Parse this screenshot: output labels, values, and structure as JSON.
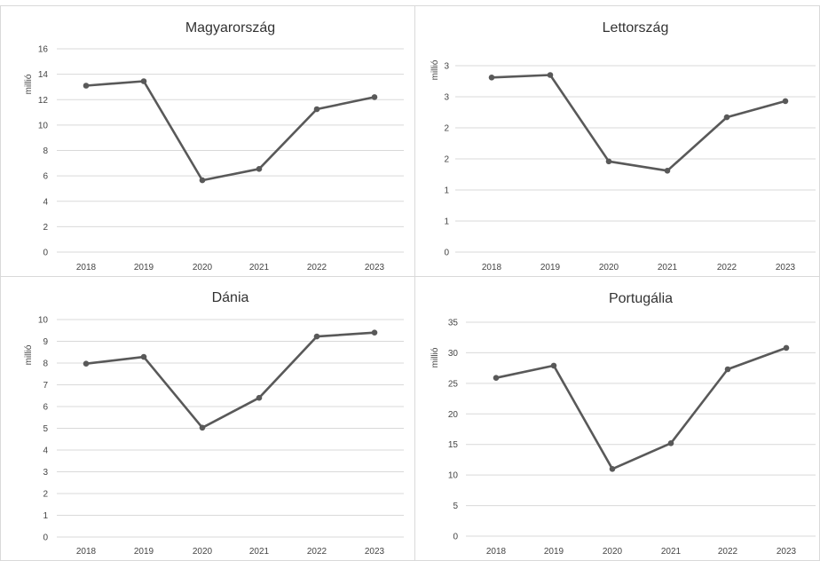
{
  "chart_data": [
    {
      "type": "line",
      "title": "Magyarország",
      "ylabel": "millió",
      "xlabel": "",
      "categories": [
        "2018",
        "2019",
        "2020",
        "2021",
        "2022",
        "2023"
      ],
      "series": [
        {
          "values": [
            13.1,
            13.45,
            5.65,
            6.55,
            11.25,
            12.2
          ]
        }
      ],
      "ylim": [
        0,
        16
      ],
      "yticks": [
        0,
        2,
        4,
        6,
        8,
        10,
        12,
        14,
        16
      ],
      "ytick_labels": [
        "0",
        "2",
        "4",
        "6",
        "8",
        "10",
        "12",
        "14",
        "16"
      ],
      "grid": true,
      "line_color": "#595959"
    },
    {
      "type": "line",
      "title": "Lettország",
      "ylabel": "millió",
      "xlabel": "",
      "categories": [
        "2018",
        "2019",
        "2020",
        "2021",
        "2022",
        "2023"
      ],
      "series": [
        {
          "values": [
            2.81,
            2.85,
            1.46,
            1.31,
            2.17,
            2.43
          ]
        }
      ],
      "ylim": [
        0,
        3.5
      ],
      "yticks": [
        0,
        0.5,
        1,
        1.5,
        2,
        2.5,
        3
      ],
      "ytick_labels": [
        "0",
        "1",
        "1",
        "2",
        "2",
        "3",
        "3"
      ],
      "grid": true,
      "line_color": "#595959"
    },
    {
      "type": "line",
      "title": "Dánia",
      "ylabel": "millió",
      "xlabel": "",
      "categories": [
        "2018",
        "2019",
        "2020",
        "2021",
        "2022",
        "2023"
      ],
      "series": [
        {
          "values": [
            7.97,
            8.28,
            5.03,
            6.4,
            9.22,
            9.4
          ]
        }
      ],
      "ylim": [
        0,
        10
      ],
      "yticks": [
        0,
        1,
        2,
        3,
        4,
        5,
        6,
        7,
        8,
        9,
        10
      ],
      "ytick_labels": [
        "0",
        "1",
        "2",
        "3",
        "4",
        "5",
        "6",
        "7",
        "8",
        "9",
        "10"
      ],
      "grid": true,
      "line_color": "#595959"
    },
    {
      "type": "line",
      "title": "Portugália",
      "ylabel": "millió",
      "xlabel": "",
      "categories": [
        "2018",
        "2019",
        "2020",
        "2021",
        "2022",
        "2023"
      ],
      "series": [
        {
          "values": [
            25.9,
            27.9,
            11.0,
            15.2,
            27.3,
            30.8
          ]
        }
      ],
      "ylim": [
        0,
        35
      ],
      "yticks": [
        0,
        5,
        10,
        15,
        20,
        25,
        30,
        35
      ],
      "ytick_labels": [
        "0",
        "5",
        "10",
        "15",
        "20",
        "25",
        "30",
        "35"
      ],
      "grid": true,
      "line_color": "#595959"
    }
  ]
}
